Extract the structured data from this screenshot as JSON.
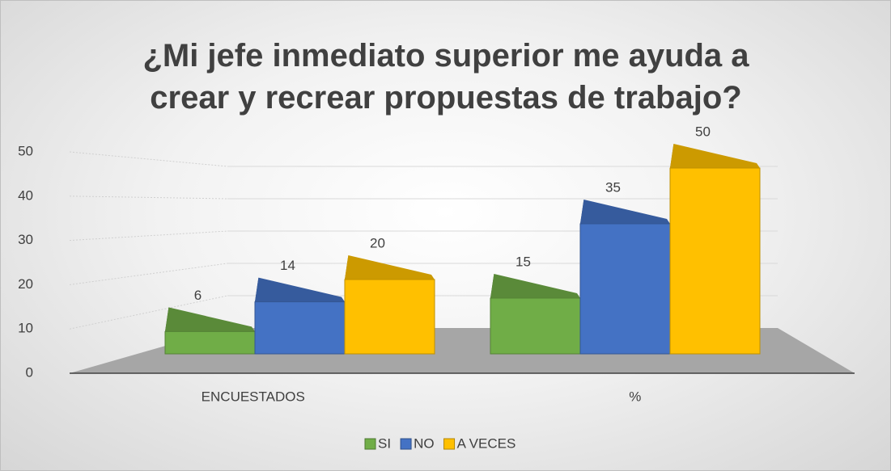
{
  "chart_data": {
    "type": "bar3d",
    "title": "¿Mi jefe inmediato superior me ayuda a crear y recrear propuestas de trabajo?",
    "categories": [
      "ENCUESTADOS",
      "%"
    ],
    "series": [
      {
        "name": "SI",
        "color": "#70ad47",
        "values": [
          6,
          15
        ]
      },
      {
        "name": "NO",
        "color": "#4472c4",
        "values": [
          14,
          35
        ]
      },
      {
        "name": "A VECES",
        "color": "#ffc000",
        "values": [
          20,
          50
        ]
      }
    ],
    "ylim": [
      0,
      50
    ],
    "yticks": [
      0,
      10,
      20,
      30,
      40,
      50
    ],
    "grid": true,
    "legend": "bottom"
  }
}
